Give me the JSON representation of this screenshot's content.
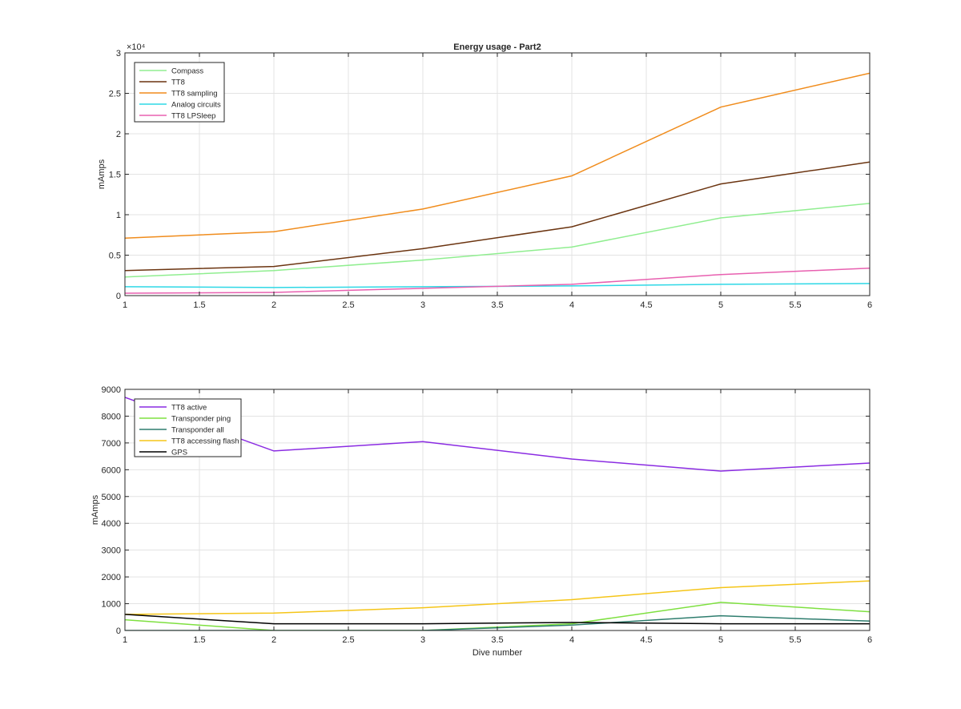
{
  "figure": {
    "title": "Energy usage - Part2"
  },
  "chart_data": [
    {
      "type": "line",
      "title": "Energy usage - Part2",
      "xlabel": "",
      "ylabel": "mAmps",
      "exponent_label": "×10⁴",
      "xlim": [
        1,
        6
      ],
      "ylim": [
        0,
        30000
      ],
      "xticks": [
        1,
        1.5,
        2,
        2.5,
        3,
        3.5,
        4,
        4.5,
        5,
        5.5,
        6
      ],
      "xtick_labels": [
        "1",
        "1.5",
        "2",
        "2.5",
        "3",
        "3.5",
        "4",
        "4.5",
        "5",
        "5.5",
        "6"
      ],
      "yticks": [
        0,
        5000,
        10000,
        15000,
        20000,
        25000,
        30000
      ],
      "ytick_labels": [
        "0",
        "0.5",
        "1",
        "1.5",
        "2",
        "2.5",
        "3"
      ],
      "grid": true,
      "legend_position": "top-left",
      "x": [
        1,
        2,
        3,
        4,
        5,
        6
      ],
      "series": [
        {
          "name": "Compass",
          "color": "#90ee90",
          "values": [
            2300,
            3100,
            4400,
            6000,
            9600,
            11400
          ]
        },
        {
          "name": "TT8",
          "color": "#6b3410",
          "values": [
            3100,
            3600,
            5800,
            8500,
            13800,
            16500
          ]
        },
        {
          "name": "TT8 sampling",
          "color": "#f08c1c",
          "values": [
            7100,
            7900,
            10700,
            14800,
            23300,
            27500
          ]
        },
        {
          "name": "Analog circuits",
          "color": "#2ed8e6",
          "values": [
            1100,
            1000,
            1100,
            1200,
            1400,
            1500
          ]
        },
        {
          "name": "TT8 LPSleep",
          "color": "#e860b0",
          "values": [
            300,
            400,
            900,
            1400,
            2600,
            3400
          ]
        }
      ]
    },
    {
      "type": "line",
      "title": "",
      "xlabel": "Dive number",
      "ylabel": "mAmps",
      "xlim": [
        1,
        6
      ],
      "ylim": [
        0,
        9000
      ],
      "xticks": [
        1,
        1.5,
        2,
        2.5,
        3,
        3.5,
        4,
        4.5,
        5,
        5.5,
        6
      ],
      "xtick_labels": [
        "1",
        "1.5",
        "2",
        "2.5",
        "3",
        "3.5",
        "4",
        "4.5",
        "5",
        "5.5",
        "6"
      ],
      "yticks": [
        0,
        1000,
        2000,
        3000,
        4000,
        5000,
        6000,
        7000,
        8000,
        9000
      ],
      "ytick_labels": [
        "0",
        "1000",
        "2000",
        "3000",
        "4000",
        "5000",
        "6000",
        "7000",
        "8000",
        "9000"
      ],
      "grid": true,
      "legend_position": "top-left",
      "x": [
        1,
        2,
        3,
        4,
        5,
        6
      ],
      "series": [
        {
          "name": "TT8 active",
          "color": "#8a2be2",
          "values": [
            8700,
            6700,
            7050,
            6400,
            5950,
            6250
          ]
        },
        {
          "name": "Transponder ping",
          "color": "#7ee040",
          "values": [
            400,
            0,
            0,
            250,
            1050,
            700
          ]
        },
        {
          "name": "Transponder all",
          "color": "#2e7d6e",
          "values": [
            0,
            0,
            0,
            200,
            550,
            350
          ]
        },
        {
          "name": "TT8 accessing flash",
          "color": "#f5c518",
          "values": [
            600,
            650,
            850,
            1150,
            1600,
            1850
          ]
        },
        {
          "name": "GPS",
          "color": "#000000",
          "values": [
            600,
            250,
            250,
            300,
            250,
            250
          ]
        }
      ]
    }
  ]
}
